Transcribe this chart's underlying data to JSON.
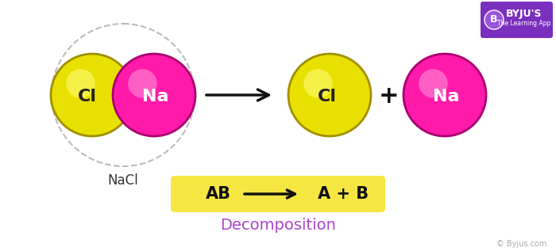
{
  "bg_color": "#ffffff",
  "yellow_color": "#e8e000",
  "yellow_edge": "#a09000",
  "yellow_highlight": "#ffff80",
  "magenta_color": "#ff1aaa",
  "magenta_edge": "#aa0070",
  "magenta_highlight": "#ff99dd",
  "dashed_circle_color": "#bbbbbb",
  "arrow_color": "#111111",
  "label_color": "#333333",
  "nacl_label": "NaCl",
  "cl_label": "Cl",
  "na_label": "Na",
  "equation_bg": "#f5e642",
  "decomp_label": "Decomposition",
  "decomp_color": "#aa44cc",
  "byju_text": "© Byjus.com",
  "plus_text": "+",
  "figsize": [
    7.0,
    3.17
  ],
  "dpi": 100
}
